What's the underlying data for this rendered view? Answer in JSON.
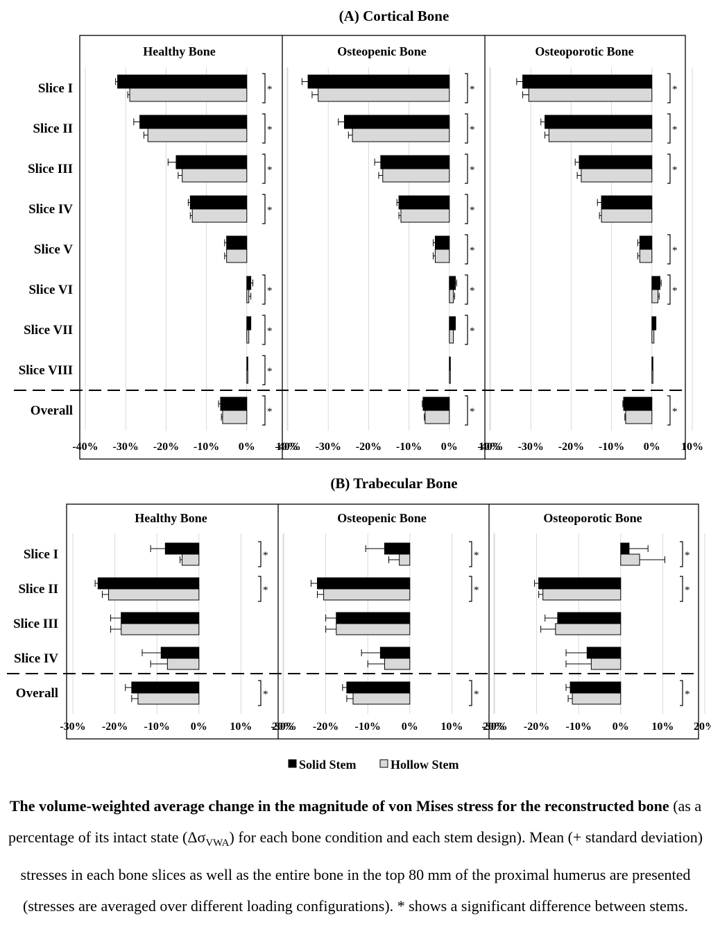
{
  "chart_data": [
    {
      "type": "bar",
      "title": "(A) Cortical Bone",
      "categories": [
        "Slice I",
        "Slice II",
        "Slice III",
        "Slice IV",
        "Slice V",
        "Slice VI",
        "Slice VII",
        "Slice VIII",
        "Overall"
      ],
      "xticks": [
        "-40%",
        "-30%",
        "-20%",
        "-10%",
        "0%",
        "10%"
      ],
      "xlim": [
        -40,
        10
      ],
      "grid": "vertical",
      "panels": [
        {
          "title": "Healthy Bone",
          "series": [
            {
              "name": "Solid Stem",
              "values": [
                -32,
                -26.5,
                -17.5,
                -14,
                -5,
                1,
                1,
                0,
                -6.5
              ],
              "sd": [
                0.5,
                1.5,
                2,
                0.5,
                0.5,
                0.5,
                0,
                0,
                0.5
              ]
            },
            {
              "name": "Hollow Stem",
              "values": [
                -29,
                -24.5,
                -16,
                -13.5,
                -5,
                0.5,
                0.5,
                0,
                -6
              ],
              "sd": [
                0.5,
                1,
                1,
                0.5,
                0.5,
                0.5,
                0,
                0,
                0.3
              ]
            }
          ],
          "significant": [
            true,
            true,
            true,
            true,
            false,
            true,
            true,
            true,
            true
          ]
        },
        {
          "title": "Osteopenic Bone",
          "series": [
            {
              "name": "Solid Stem",
              "values": [
                -35,
                -26,
                -17,
                -12.5,
                -3.5,
                1.5,
                1.5,
                0,
                -6.5
              ],
              "sd": [
                1.5,
                1.5,
                1.5,
                0.5,
                0.5,
                0.3,
                0,
                0,
                0.2
              ]
            },
            {
              "name": "Hollow Stem",
              "values": [
                -32.5,
                -24,
                -16.5,
                -12,
                -3.5,
                1,
                1,
                0,
                -6
              ],
              "sd": [
                1.5,
                1,
                1,
                0.5,
                0.5,
                0.3,
                0,
                0,
                0.2
              ]
            }
          ],
          "significant": [
            true,
            true,
            true,
            true,
            true,
            true,
            true,
            false,
            true
          ]
        },
        {
          "title": "Osteoporotic Bone",
          "series": [
            {
              "name": "Solid Stem",
              "values": [
                -32,
                -26.5,
                -18,
                -12.5,
                -3,
                2,
                1,
                0,
                -7
              ],
              "sd": [
                1.5,
                1,
                1,
                1,
                0.5,
                0.3,
                0,
                0,
                0.2
              ]
            },
            {
              "name": "Hollow Stem",
              "values": [
                -30.5,
                -25.5,
                -17.5,
                -12.5,
                -3,
                1.5,
                0.5,
                0,
                -6.5
              ],
              "sd": [
                1.5,
                1,
                1,
                0.5,
                0.5,
                0.3,
                0,
                0,
                0.2
              ]
            }
          ],
          "significant": [
            true,
            true,
            true,
            false,
            true,
            true,
            false,
            false,
            true
          ]
        }
      ]
    },
    {
      "type": "bar",
      "title": "(B) Trabecular Bone",
      "categories": [
        "Slice I",
        "Slice II",
        "Slice III",
        "Slice IV",
        "Overall"
      ],
      "xticks": [
        "-30%",
        "-20%",
        "-10%",
        "0%",
        "10%",
        "20%"
      ],
      "xlim": [
        -30,
        20
      ],
      "grid": "vertical",
      "panels": [
        {
          "title": "Healthy Bone",
          "series": [
            {
              "name": "Solid Stem",
              "values": [
                -8,
                -24,
                -18.5,
                -9,
                -16
              ],
              "sd": [
                3.5,
                0.7,
                2.5,
                4.5,
                1.5
              ]
            },
            {
              "name": "Hollow Stem",
              "values": [
                -4,
                -21.5,
                -18.5,
                -7.5,
                -14.5
              ],
              "sd": [
                0.5,
                1.5,
                2.5,
                4,
                1.5
              ]
            }
          ],
          "significant": [
            true,
            true,
            false,
            false,
            true
          ]
        },
        {
          "title": "Osteopenic Bone",
          "series": [
            {
              "name": "Solid Stem",
              "values": [
                -6,
                -22,
                -17.5,
                -7,
                -15
              ],
              "sd": [
                4.5,
                1.5,
                2.5,
                4.5,
                1
              ]
            },
            {
              "name": "Hollow Stem",
              "values": [
                -2.5,
                -20.5,
                -17.5,
                -6,
                -13.5
              ],
              "sd": [
                2.5,
                1.5,
                2.5,
                4,
                1.5
              ]
            }
          ],
          "significant": [
            true,
            true,
            false,
            false,
            true
          ]
        },
        {
          "title": "Osteoporotic Bone",
          "series": [
            {
              "name": "Solid Stem",
              "values": [
                2,
                -19.5,
                -15,
                -8,
                -12
              ],
              "sd": [
                4.5,
                1,
                3,
                5,
                1
              ]
            },
            {
              "name": "Hollow Stem",
              "values": [
                4.5,
                -18.5,
                -15.5,
                -7,
                -11.5
              ],
              "sd": [
                6,
                1,
                3.5,
                6,
                1
              ]
            }
          ],
          "significant": [
            true,
            true,
            false,
            false,
            true
          ]
        }
      ]
    }
  ],
  "legend": {
    "solid": "Solid Stem",
    "hollow": "Hollow Stem"
  },
  "caption": {
    "bold": "The volume-weighted average change in the magnitude of von Mises stress for the reconstructed bone",
    "part1": " (as a percentage of its intact state (Δσ",
    "subscript": "VWA",
    "part2": ") for each bone condition and each stem design). Mean (+ standard deviation) stresses in each bone slices as well as the entire bone in the top 80 mm of the proximal humerus are presented (stresses are averaged over different loading configurations). * shows a significant difference between stems."
  },
  "colors": {
    "solid": "#000000",
    "hollow": "#d9d9d9",
    "grid": "#d9d9d9"
  }
}
